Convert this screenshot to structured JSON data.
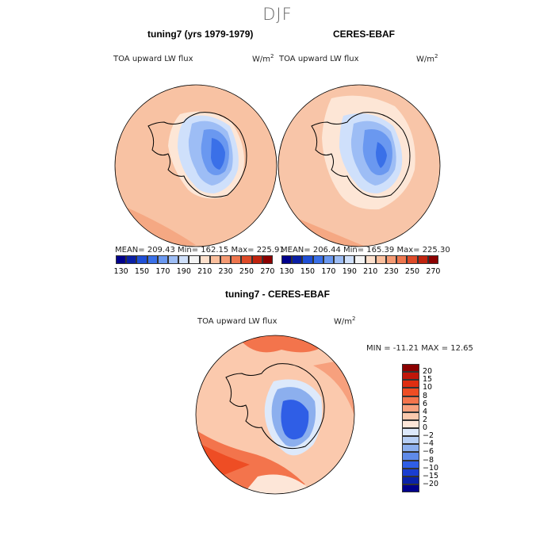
{
  "suptitle": "DJF",
  "panels": [
    {
      "title": "tuning7 (yrs 1979-1979)",
      "var_label": "TOA upward LW flux",
      "units": "W/m",
      "units_exp": "2",
      "stats": "MEAN= 209.43  Min= 162.15  Max= 225.91"
    },
    {
      "title": "CERES-EBAF",
      "var_label": "TOA upward LW flux",
      "units": "W/m",
      "units_exp": "2",
      "stats": "MEAN= 206.44  Min= 165.39  Max= 225.30"
    },
    {
      "title": "tuning7 - CERES-EBAF",
      "var_label": "TOA upward LW flux",
      "units": "W/m",
      "units_exp": "2",
      "stats": "MIN = -11.21 MAX =  12.65"
    }
  ],
  "colorbar_field": {
    "colors": [
      "#00008b",
      "#0a1fa5",
      "#1f4fd6",
      "#3a70e8",
      "#6a98f0",
      "#9dbdf5",
      "#cfe0fb",
      "#f4f4f4",
      "#fde0cc",
      "#fbbf9d",
      "#f59a73",
      "#ee764e",
      "#de4a28",
      "#c0230e",
      "#8b0000"
    ],
    "tick_labels": [
      "130",
      "150",
      "170",
      "190",
      "210",
      "230",
      "250",
      "270"
    ]
  },
  "colorbar_diff": {
    "colors": [
      "#8b0000",
      "#c0170a",
      "#de2e12",
      "#ee4d24",
      "#f3744c",
      "#f7a07d",
      "#fbc9ad",
      "#fde6d8",
      "#dde9fb",
      "#b7cff5",
      "#8cafee",
      "#5f8ae8",
      "#2f5ee6",
      "#1a3ed0",
      "#0a22a8",
      "#00008b"
    ],
    "tick_labels": [
      "20",
      "15",
      "10",
      "8",
      "6",
      "4",
      "2",
      "0",
      "−2",
      "−4",
      "−6",
      "−8",
      "−10",
      "−15",
      "−20"
    ]
  },
  "chart_data": [
    {
      "type": "heatmap",
      "title": "tuning7 (yrs 1979-1979)",
      "variable": "TOA upward LW flux",
      "units": "W/m^2",
      "projection": "south polar stereographic",
      "mean": 209.43,
      "min": 162.15,
      "max": 225.91,
      "levels": [
        130,
        140,
        150,
        160,
        170,
        180,
        190,
        200,
        210,
        220,
        230,
        240,
        250,
        260,
        270
      ]
    },
    {
      "type": "heatmap",
      "title": "CERES-EBAF",
      "variable": "TOA upward LW flux",
      "units": "W/m^2",
      "projection": "south polar stereographic",
      "mean": 206.44,
      "min": 165.39,
      "max": 225.3,
      "levels": [
        130,
        140,
        150,
        160,
        170,
        180,
        190,
        200,
        210,
        220,
        230,
        240,
        250,
        260,
        270
      ]
    },
    {
      "type": "heatmap",
      "title": "tuning7 - CERES-EBAF",
      "variable": "TOA upward LW flux",
      "units": "W/m^2",
      "projection": "south polar stereographic",
      "min": -11.21,
      "max": 12.65,
      "levels": [
        -20,
        -15,
        -10,
        -8,
        -6,
        -4,
        -2,
        0,
        2,
        4,
        6,
        8,
        10,
        15,
        20
      ]
    }
  ]
}
